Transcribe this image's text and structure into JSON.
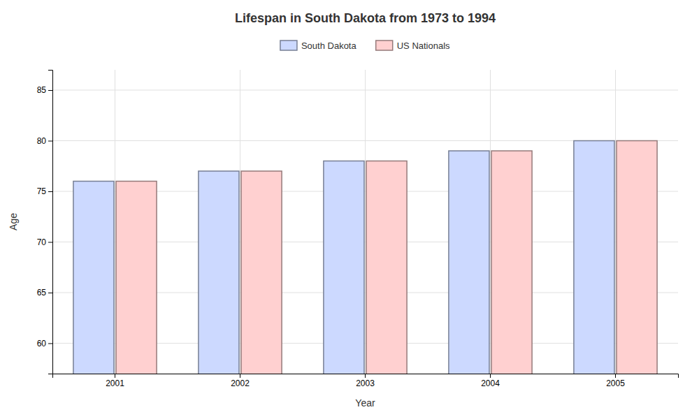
{
  "chart_data": {
    "type": "bar",
    "title": "Lifespan in South Dakota from 1973 to 1994",
    "xlabel": "Year",
    "ylabel": "Age",
    "categories": [
      "2001",
      "2002",
      "2003",
      "2004",
      "2005"
    ],
    "series": [
      {
        "name": "South Dakota",
        "color": "#ccd9ff",
        "values": [
          76,
          77,
          78,
          79,
          80
        ]
      },
      {
        "name": "US Nationals",
        "color": "#ffd0d0",
        "values": [
          76,
          77,
          78,
          79,
          80
        ]
      }
    ],
    "ylim": [
      57,
      87
    ],
    "yticks": [
      60,
      65,
      70,
      75,
      80,
      85
    ],
    "grid": true,
    "legend": "top"
  }
}
